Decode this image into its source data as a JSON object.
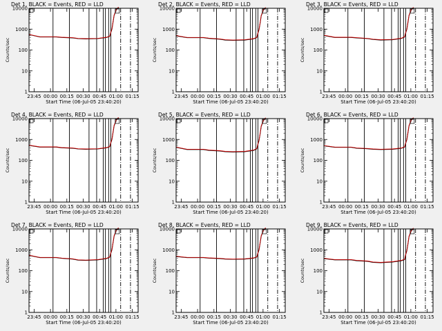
{
  "chart_data": [
    {
      "type": "line",
      "title": "Det 1, BLACK = Events, RED = LLD",
      "xlabel": "Start Time (06-Jul-05 23:40:20)",
      "ylabel": "Counts/sec",
      "x_ticks": [
        "23:45",
        "00:00",
        "00:15",
        "00:30",
        "00:45",
        "01:00",
        "01:15"
      ],
      "y_ticks": [
        "1",
        "10",
        "100",
        "1000",
        "10000"
      ],
      "y_scale": "log",
      "xlim_minutes": [
        0,
        100
      ],
      "ylim": [
        1,
        10000
      ],
      "series": [
        {
          "name": "Events",
          "color": "#000000",
          "x": [
            0,
            10,
            25,
            30,
            40,
            45,
            52,
            63,
            71,
            74,
            75,
            76,
            77,
            78,
            80,
            82
          ],
          "y": [
            550,
            420,
            420,
            400,
            380,
            350,
            340,
            350,
            400,
            450,
            700,
            1000,
            2200,
            4500,
            8500,
            11000
          ]
        },
        {
          "name": "LLD",
          "color": "#d00000",
          "x": [
            0,
            10,
            25,
            30,
            40,
            45,
            52,
            63,
            71,
            74,
            75,
            76,
            77,
            78,
            80,
            82
          ],
          "y": [
            560,
            430,
            430,
            410,
            390,
            360,
            350,
            360,
            410,
            460,
            720,
            1050,
            2300,
            4700,
            8800,
            11500
          ]
        }
      ],
      "solid_vlines_x": [
        22,
        37,
        55,
        62,
        68,
        70,
        73,
        75
      ],
      "dashed_vlines_x": [
        84,
        93
      ],
      "grid": false
    },
    {
      "type": "line",
      "title": "Det 2, BLACK = Events, RED = LLD",
      "xlabel": "Start Time (06-Jul-05 23:40:20)",
      "ylabel": "Counts/sec",
      "x_ticks": [
        "23:45",
        "00:00",
        "00:15",
        "00:30",
        "00:45",
        "01:00",
        "01:15"
      ],
      "y_ticks": [
        "1",
        "10",
        "100",
        "1000",
        "10000"
      ],
      "y_scale": "log",
      "xlim_minutes": [
        0,
        100
      ],
      "ylim": [
        1,
        10000
      ],
      "series": [
        {
          "name": "Events",
          "color": "#000000",
          "x": [
            0,
            10,
            25,
            30,
            40,
            45,
            52,
            63,
            71,
            74,
            75,
            76,
            77,
            78,
            80,
            82
          ],
          "y": [
            480,
            390,
            390,
            360,
            330,
            300,
            290,
            300,
            340,
            400,
            650,
            950,
            2000,
            4300,
            8200,
            10500
          ]
        },
        {
          "name": "LLD",
          "color": "#d00000",
          "x": [
            0,
            10,
            25,
            30,
            40,
            45,
            52,
            63,
            71,
            74,
            75,
            76,
            77,
            78,
            80,
            82
          ],
          "y": [
            490,
            400,
            400,
            370,
            340,
            310,
            300,
            310,
            350,
            410,
            670,
            980,
            2100,
            4500,
            8500,
            11000
          ]
        }
      ],
      "solid_vlines_x": [
        22,
        37,
        55,
        62,
        68,
        70,
        73,
        75
      ],
      "dashed_vlines_x": [
        84,
        93
      ],
      "grid": false
    },
    {
      "type": "line",
      "title": "Det 3, BLACK = Events, RED = LLD",
      "xlabel": "Start Time (06-Jul-05 23:40:20)",
      "ylabel": "Counts/sec",
      "x_ticks": [
        "23:45",
        "00:00",
        "00:15",
        "00:30",
        "00:45",
        "01:00",
        "01:15"
      ],
      "y_ticks": [
        "1",
        "10",
        "100",
        "1000",
        "10000"
      ],
      "y_scale": "log",
      "xlim_minutes": [
        0,
        100
      ],
      "ylim": [
        1,
        10000
      ],
      "series": [
        {
          "name": "Events",
          "color": "#000000",
          "x": [
            0,
            10,
            25,
            30,
            40,
            45,
            52,
            63,
            71,
            74,
            75,
            76,
            77,
            78,
            80,
            82
          ],
          "y": [
            500,
            400,
            400,
            380,
            350,
            320,
            300,
            310,
            360,
            420,
            680,
            980,
            2100,
            4400,
            8300,
            10800
          ]
        },
        {
          "name": "LLD",
          "color": "#d00000",
          "x": [
            0,
            10,
            25,
            30,
            40,
            45,
            52,
            63,
            71,
            74,
            75,
            76,
            77,
            78,
            80,
            82
          ],
          "y": [
            510,
            410,
            410,
            390,
            360,
            330,
            310,
            320,
            370,
            430,
            700,
            1000,
            2200,
            4600,
            8600,
            11200
          ]
        }
      ],
      "solid_vlines_x": [
        22,
        37,
        55,
        62,
        68,
        70,
        73,
        75
      ],
      "dashed_vlines_x": [
        84,
        93
      ],
      "grid": false
    },
    {
      "type": "line",
      "title": "Det 4, BLACK = Events, RED = LLD",
      "xlabel": "Start Time (06-Jul-05 23:40:20)",
      "ylabel": "Counts/sec",
      "x_ticks": [
        "23:45",
        "00:00",
        "00:15",
        "00:30",
        "00:45",
        "01:00",
        "01:15"
      ],
      "y_ticks": [
        "1",
        "10",
        "100",
        "1000",
        "10000"
      ],
      "y_scale": "log",
      "xlim_minutes": [
        0,
        100
      ],
      "ylim": [
        1,
        10000
      ],
      "series": [
        {
          "name": "Events",
          "color": "#000000",
          "x": [
            0,
            10,
            25,
            30,
            40,
            45,
            52,
            63,
            71,
            74,
            75,
            76,
            77,
            78,
            80,
            82
          ],
          "y": [
            520,
            430,
            430,
            400,
            380,
            350,
            340,
            350,
            400,
            450,
            700,
            1000,
            2200,
            4500,
            8500,
            11000
          ]
        },
        {
          "name": "LLD",
          "color": "#d00000",
          "x": [
            0,
            10,
            25,
            30,
            40,
            45,
            52,
            63,
            71,
            74,
            75,
            76,
            77,
            78,
            80,
            82
          ],
          "y": [
            530,
            440,
            440,
            410,
            390,
            360,
            350,
            360,
            410,
            460,
            720,
            1050,
            2300,
            4700,
            8800,
            11500
          ]
        }
      ],
      "solid_vlines_x": [
        22,
        37,
        55,
        62,
        68,
        70,
        73,
        75
      ],
      "dashed_vlines_x": [
        84,
        93
      ],
      "grid": false
    },
    {
      "type": "line",
      "title": "Det 5, BLACK = Events, RED = LLD",
      "xlabel": "Start Time (06-Jul-05 23:40:20)",
      "ylabel": "Counts/sec",
      "x_ticks": [
        "23:45",
        "00:00",
        "00:15",
        "00:30",
        "00:45",
        "01:00",
        "01:15"
      ],
      "y_ticks": [
        "1",
        "10",
        "100",
        "1000",
        "10000"
      ],
      "y_scale": "log",
      "xlim_minutes": [
        0,
        100
      ],
      "ylim": [
        1,
        10000
      ],
      "series": [
        {
          "name": "Events",
          "color": "#000000",
          "x": [
            0,
            10,
            25,
            30,
            40,
            45,
            52,
            63,
            71,
            74,
            75,
            76,
            77,
            78,
            80,
            82
          ],
          "y": [
            420,
            330,
            330,
            300,
            280,
            260,
            250,
            260,
            300,
            360,
            600,
            900,
            1900,
            4200,
            8000,
            10500
          ]
        },
        {
          "name": "LLD",
          "color": "#d00000",
          "x": [
            0,
            10,
            25,
            30,
            40,
            45,
            52,
            63,
            71,
            74,
            75,
            76,
            77,
            78,
            80,
            82
          ],
          "y": [
            430,
            340,
            340,
            310,
            290,
            270,
            260,
            270,
            310,
            370,
            620,
            930,
            2000,
            4400,
            8300,
            11000
          ]
        }
      ],
      "solid_vlines_x": [
        22,
        37,
        55,
        62,
        68,
        70,
        73,
        75
      ],
      "dashed_vlines_x": [
        84,
        93
      ],
      "grid": false
    },
    {
      "type": "line",
      "title": "Det 6, BLACK = Events, RED = LLD",
      "xlabel": "Start Time (06-Jul-05 23:40:20)",
      "ylabel": "Counts/sec",
      "x_ticks": [
        "23:45",
        "00:00",
        "00:15",
        "00:30",
        "00:45",
        "01:00",
        "01:15"
      ],
      "y_ticks": [
        "1",
        "10",
        "100",
        "1000",
        "10000"
      ],
      "y_scale": "log",
      "xlim_minutes": [
        0,
        100
      ],
      "ylim": [
        1,
        10000
      ],
      "series": [
        {
          "name": "Events",
          "color": "#000000",
          "x": [
            0,
            10,
            25,
            30,
            40,
            45,
            52,
            63,
            71,
            74,
            75,
            76,
            77,
            78,
            80,
            82
          ],
          "y": [
            500,
            420,
            420,
            380,
            360,
            340,
            330,
            340,
            380,
            430,
            680,
            980,
            2100,
            4400,
            8300,
            10800
          ]
        },
        {
          "name": "LLD",
          "color": "#d00000",
          "x": [
            0,
            10,
            25,
            30,
            40,
            45,
            52,
            63,
            71,
            74,
            75,
            76,
            77,
            78,
            80,
            82
          ],
          "y": [
            510,
            430,
            430,
            390,
            370,
            350,
            340,
            350,
            390,
            440,
            700,
            1000,
            2200,
            4600,
            8600,
            11200
          ]
        }
      ],
      "solid_vlines_x": [
        22,
        37,
        55,
        62,
        68,
        70,
        73,
        75
      ],
      "dashed_vlines_x": [
        84,
        93
      ],
      "grid": false
    },
    {
      "type": "line",
      "title": "Det 7, BLACK = Events, RED = LLD",
      "xlabel": "Start Time (06-Jul-05 23:40:20)",
      "ylabel": "Counts/sec",
      "x_ticks": [
        "23:45",
        "00:00",
        "00:15",
        "00:30",
        "00:45",
        "01:00",
        "01:15"
      ],
      "y_ticks": [
        "1",
        "10",
        "100",
        "1000",
        "10000"
      ],
      "y_scale": "log",
      "xlim_minutes": [
        0,
        100
      ],
      "ylim": [
        1,
        10000
      ],
      "series": [
        {
          "name": "Events",
          "color": "#000000",
          "x": [
            0,
            10,
            25,
            30,
            40,
            45,
            52,
            63,
            71,
            74,
            75,
            76,
            77,
            78,
            80,
            82
          ],
          "y": [
            540,
            420,
            420,
            390,
            360,
            320,
            310,
            330,
            380,
            440,
            700,
            1000,
            2200,
            4500,
            8500,
            11000
          ]
        },
        {
          "name": "LLD",
          "color": "#d00000",
          "x": [
            0,
            10,
            25,
            30,
            40,
            45,
            52,
            63,
            71,
            74,
            75,
            76,
            77,
            78,
            80,
            82
          ],
          "y": [
            550,
            430,
            430,
            400,
            370,
            330,
            320,
            340,
            390,
            450,
            720,
            1050,
            2300,
            4700,
            8800,
            11500
          ]
        }
      ],
      "solid_vlines_x": [
        22,
        37,
        55,
        62,
        68,
        70,
        73,
        75
      ],
      "dashed_vlines_x": [
        84,
        93
      ],
      "grid": false
    },
    {
      "type": "line",
      "title": "Det 8, BLACK = Events, RED = LLD",
      "xlabel": "Start Time (06-Jul-05 23:40:20)",
      "ylabel": "Counts/sec",
      "x_ticks": [
        "23:45",
        "00:00",
        "00:15",
        "00:30",
        "00:45",
        "01:00",
        "01:15"
      ],
      "y_ticks": [
        "1",
        "10",
        "100",
        "1000",
        "10000"
      ],
      "y_scale": "log",
      "xlim_minutes": [
        0,
        100
      ],
      "ylim": [
        1,
        10000
      ],
      "series": [
        {
          "name": "Events",
          "color": "#000000",
          "x": [
            0,
            10,
            25,
            30,
            40,
            45,
            52,
            63,
            71,
            74,
            75,
            76,
            77,
            78,
            80,
            82
          ],
          "y": [
            480,
            420,
            420,
            400,
            380,
            360,
            350,
            360,
            400,
            450,
            700,
            1000,
            2200,
            4500,
            8500,
            11000
          ]
        },
        {
          "name": "LLD",
          "color": "#d00000",
          "x": [
            0,
            10,
            25,
            30,
            40,
            45,
            52,
            63,
            71,
            74,
            75,
            76,
            77,
            78,
            80,
            82
          ],
          "y": [
            490,
            430,
            430,
            410,
            390,
            370,
            360,
            370,
            410,
            460,
            720,
            1050,
            2300,
            4700,
            8800,
            11500
          ]
        }
      ],
      "solid_vlines_x": [
        22,
        37,
        55,
        62,
        68,
        70,
        73,
        75
      ],
      "dashed_vlines_x": [
        84,
        93
      ],
      "grid": false
    },
    {
      "type": "line",
      "title": "Det 9, BLACK = Events, RED = LLD",
      "xlabel": "Start Time (06-Jul-05 23:40:20)",
      "ylabel": "Counts/sec",
      "x_ticks": [
        "23:45",
        "00:00",
        "00:15",
        "00:30",
        "00:45",
        "01:00",
        "01:15"
      ],
      "y_ticks": [
        "1",
        "10",
        "100",
        "1000",
        "10000"
      ],
      "y_scale": "log",
      "xlim_minutes": [
        0,
        100
      ],
      "ylim": [
        1,
        10000
      ],
      "series": [
        {
          "name": "Events",
          "color": "#000000",
          "x": [
            0,
            10,
            25,
            30,
            40,
            45,
            52,
            63,
            71,
            74,
            75,
            76,
            77,
            78,
            80,
            82
          ],
          "y": [
            380,
            330,
            330,
            300,
            280,
            250,
            240,
            260,
            300,
            340,
            600,
            900,
            1900,
            4200,
            8000,
            10500
          ]
        },
        {
          "name": "LLD",
          "color": "#d00000",
          "x": [
            0,
            10,
            25,
            30,
            40,
            45,
            52,
            63,
            71,
            74,
            75,
            76,
            77,
            78,
            80,
            82
          ],
          "y": [
            390,
            340,
            340,
            310,
            290,
            260,
            250,
            270,
            310,
            350,
            620,
            930,
            2000,
            4400,
            8300,
            11000
          ]
        }
      ],
      "solid_vlines_x": [
        22,
        37,
        55,
        62,
        68,
        70,
        73,
        75
      ],
      "dashed_vlines_x": [
        84,
        93
      ],
      "grid": false
    }
  ]
}
